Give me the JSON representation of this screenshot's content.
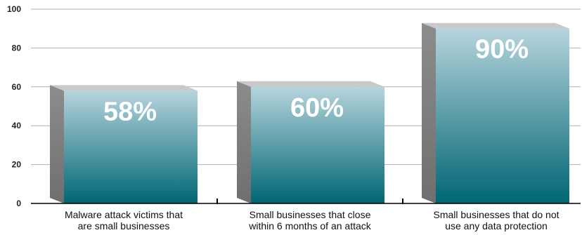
{
  "chart_data": {
    "type": "bar",
    "style": "3d",
    "categories": [
      [
        "Malware attack victims that",
        "are small businesses"
      ],
      [
        "Small businesses that close",
        "within 6 months of an attack"
      ],
      [
        "Small businesses that do not",
        "use any data protection"
      ]
    ],
    "values": [
      58,
      60,
      90
    ],
    "data_labels": [
      "58%",
      "60%",
      "90%"
    ],
    "yticks": [
      "0",
      "20",
      "40",
      "60",
      "80",
      "100"
    ],
    "ylim": [
      0,
      100
    ],
    "grid": true,
    "legend": "none",
    "colors": {
      "bar_top": "#b6d4dd",
      "bar_bottom": "#006673",
      "bar_side": "#8c8c8c",
      "bar_side_dark": "#6f6f6f",
      "bar_cap": "#c9c9c9",
      "grid": "#b0b0b0",
      "axis": "#000000"
    }
  }
}
